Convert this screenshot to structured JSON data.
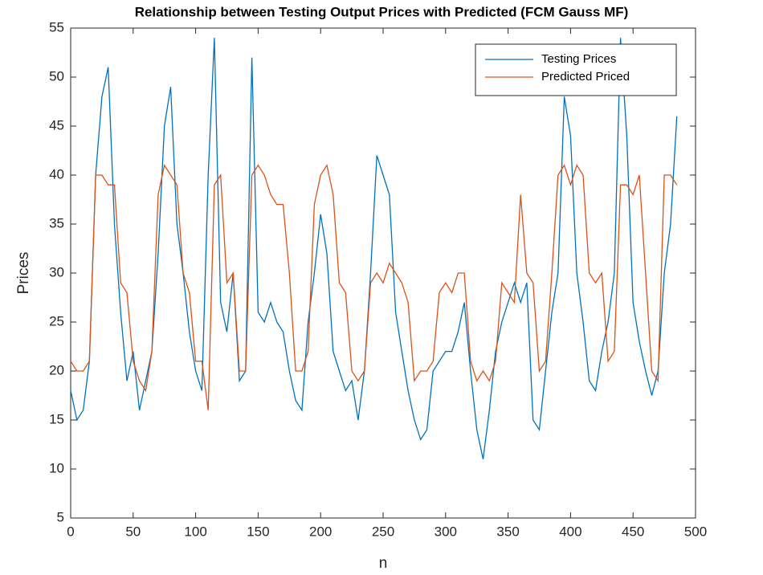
{
  "chart_data": {
    "type": "line",
    "title": "Relationship between Testing Output Prices with Predicted (FCM Gauss MF)",
    "xlabel": "n",
    "ylabel": "Prices",
    "x": [
      0,
      5,
      10,
      15,
      20,
      25,
      30,
      35,
      40,
      45,
      50,
      55,
      60,
      65,
      70,
      75,
      80,
      85,
      90,
      95,
      100,
      105,
      110,
      115,
      120,
      125,
      130,
      135,
      140,
      145,
      150,
      155,
      160,
      165,
      170,
      175,
      180,
      185,
      190,
      195,
      200,
      205,
      210,
      215,
      220,
      225,
      230,
      235,
      240,
      245,
      250,
      255,
      260,
      265,
      270,
      275,
      280,
      285,
      290,
      295,
      300,
      305,
      310,
      315,
      320,
      325,
      330,
      335,
      340,
      345,
      350,
      355,
      360,
      365,
      370,
      375,
      380,
      385,
      390,
      395,
      400,
      405,
      410,
      415,
      420,
      425,
      430,
      435,
      440,
      445,
      450,
      455,
      460,
      465,
      470,
      475,
      480,
      485
    ],
    "series": [
      {
        "name": "Testing Prices",
        "color": "#0072bd",
        "values": [
          18,
          15,
          16,
          21,
          40,
          48,
          51,
          35,
          26,
          19,
          22,
          16,
          19,
          22,
          32,
          45,
          49,
          35,
          30,
          24,
          20,
          18,
          40,
          54,
          27,
          24,
          30,
          19,
          20,
          52,
          26,
          25,
          27,
          25,
          24,
          20,
          17,
          16,
          25,
          30,
          36,
          32,
          22,
          20,
          18,
          19,
          15,
          20,
          30,
          42,
          40,
          38,
          26,
          22,
          18,
          15,
          13,
          14,
          20,
          21,
          22,
          22,
          24,
          27,
          20,
          14,
          11,
          16,
          22,
          25,
          27,
          29,
          27,
          29,
          15,
          14,
          20,
          26,
          30,
          48,
          44,
          30,
          25,
          19,
          18,
          22,
          25,
          30,
          54,
          44,
          27,
          23,
          20,
          17.5,
          20,
          30,
          35,
          46
        ]
      },
      {
        "name": "Predicted Priced",
        "color": "#d95319",
        "values": [
          21,
          20,
          20,
          21,
          40,
          40,
          39,
          39,
          29,
          28,
          21,
          19,
          18,
          22,
          38,
          41,
          40,
          39,
          30,
          28,
          21,
          21,
          16,
          39,
          40,
          29,
          30,
          20,
          20,
          40,
          41,
          40,
          38,
          37,
          37,
          30,
          20,
          20,
          22,
          37,
          40,
          41,
          38,
          29,
          28,
          20,
          19,
          20,
          29,
          30,
          29,
          31,
          30,
          29,
          27,
          19,
          20,
          20,
          21,
          28,
          29,
          28,
          30,
          30,
          21,
          19,
          20,
          19,
          21,
          29,
          28,
          27,
          38,
          30,
          29,
          20,
          21,
          30,
          40,
          41,
          39,
          41,
          40,
          30,
          29,
          30,
          21,
          22,
          39,
          39,
          38,
          40,
          30,
          20,
          19,
          40,
          40,
          39
        ]
      }
    ],
    "xlim": [
      0,
      500
    ],
    "xticks": [
      0,
      50,
      100,
      150,
      200,
      250,
      300,
      350,
      400,
      450,
      500
    ],
    "ylim": [
      5,
      55
    ],
    "yticks": [
      5,
      10,
      15,
      20,
      25,
      30,
      35,
      40,
      45,
      50,
      55
    ],
    "legend": "northeast",
    "grid": false
  }
}
